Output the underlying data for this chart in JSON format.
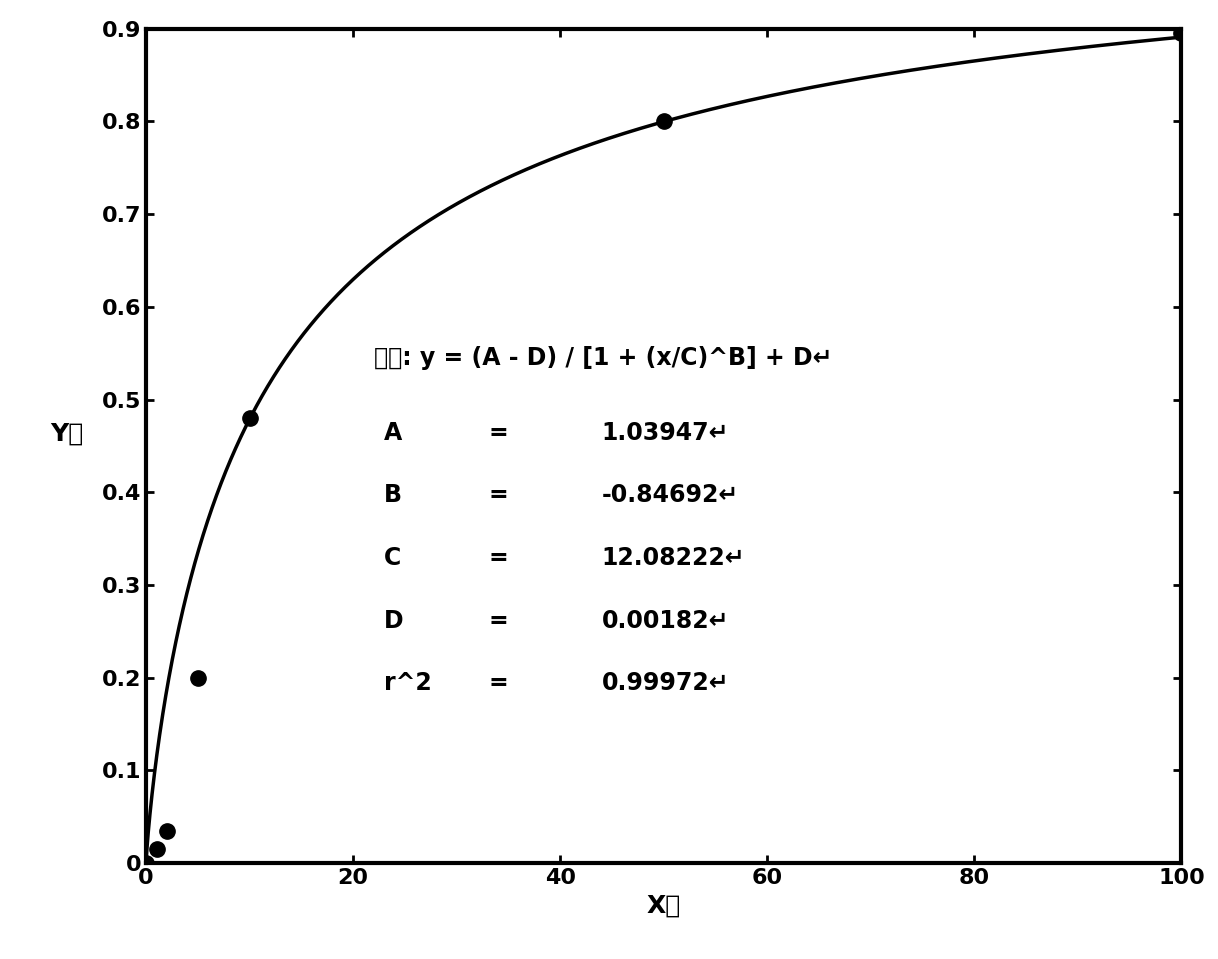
{
  "A": 1.03947,
  "B": -0.84692,
  "C": 12.08222,
  "D": 0.00182,
  "r2": 0.99972,
  "data_points_x": [
    0,
    1,
    2,
    5,
    10,
    50,
    100
  ],
  "data_points_y": [
    0.0,
    0.015,
    0.035,
    0.2,
    0.48,
    0.8,
    0.895
  ],
  "xlim": [
    0,
    100
  ],
  "ylim": [
    0,
    0.9
  ],
  "xticks": [
    0,
    20,
    40,
    60,
    80,
    100
  ],
  "yticks": [
    0.0,
    0.1,
    0.2,
    0.3,
    0.4,
    0.5,
    0.6,
    0.7,
    0.8,
    0.9
  ],
  "xlabel": "X値",
  "ylabel": "Y値",
  "line_color": "#000000",
  "point_color": "#000000",
  "bg_color": "#ffffff",
  "linewidth": 2.5,
  "markersize": 11,
  "fontsize_axis_label": 18,
  "fontsize_ticks": 16,
  "fontsize_annotation": 17,
  "fontsize_equation": 17,
  "spine_linewidth": 3.0
}
